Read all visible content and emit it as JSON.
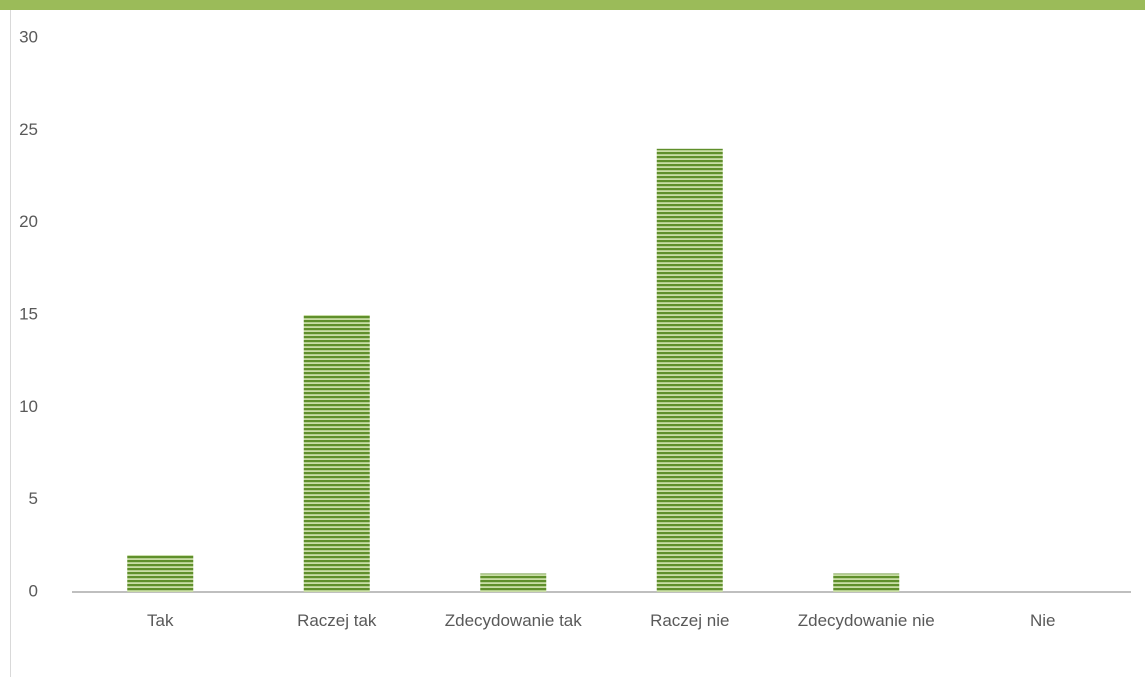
{
  "chart_data": {
    "type": "bar",
    "categories": [
      "Tak",
      "Raczej tak",
      "Zdecydowanie tak",
      "Raczej nie",
      "Zdecydowanie nie",
      "Nie"
    ],
    "values": [
      2,
      15,
      1,
      24,
      1,
      0
    ],
    "color": "#5f8f2b",
    "ylim": [
      0,
      30
    ],
    "yticks": [
      0,
      5,
      10,
      15,
      20,
      25,
      30
    ],
    "grid": false
  }
}
